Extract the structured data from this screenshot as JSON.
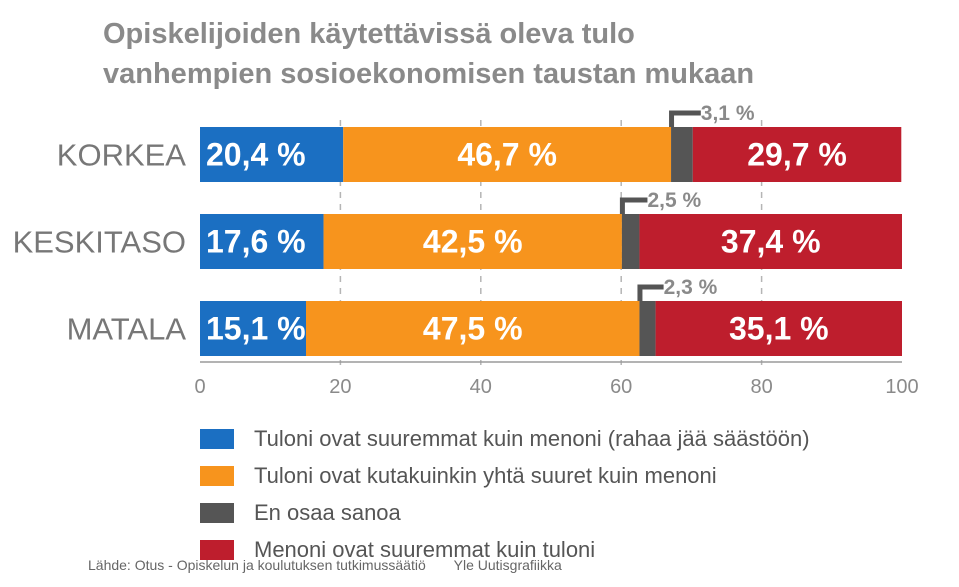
{
  "title": {
    "line1": "Opiskelijoiden käytettävissä oleva tulo",
    "line2": "vanhempien sosioekonomisen taustan mukaan"
  },
  "colors": {
    "blue": "#1b6fc2",
    "orange": "#f7941d",
    "gray": "#555555",
    "red": "#be1e2d",
    "axis_text": "#8a8a8a",
    "category_text": "#777777"
  },
  "chart_data": {
    "type": "bar",
    "orientation": "horizontal",
    "stacked": true,
    "categories": [
      "KORKEA",
      "KESKITASO",
      "MATALA"
    ],
    "series": [
      {
        "name": "Tuloni ovat suuremmat kuin menoni (rahaa jää säästöön)",
        "color": "#1b6fc2",
        "values": [
          20.4,
          17.6,
          15.1
        ],
        "labels": [
          "20,4 %",
          "17,6 %",
          "15,1 %"
        ]
      },
      {
        "name": "Tuloni ovat kutakuinkin yhtä suuret kuin menoni",
        "color": "#f7941d",
        "values": [
          46.7,
          42.5,
          47.5
        ],
        "labels": [
          "46,7 %",
          "42,5 %",
          "47,5 %"
        ]
      },
      {
        "name": "En osaa sanoa",
        "color": "#555555",
        "values": [
          3.1,
          2.5,
          2.3
        ],
        "labels": [
          "3,1 %",
          "2,5 %",
          "2,3 %"
        ]
      },
      {
        "name": "Menoni ovat suuremmat kuin tuloni",
        "color": "#be1e2d",
        "values": [
          29.7,
          37.4,
          35.1
        ],
        "labels": [
          "29,7 %",
          "37,4 %",
          "35,1 %"
        ]
      }
    ],
    "xlim": [
      0,
      100
    ],
    "xticks": [
      "0",
      "20",
      "40",
      "60",
      "80",
      "100"
    ],
    "grid": "dashed vertical",
    "legend": "bottom"
  },
  "legend_items": [
    {
      "label": "Tuloni ovat suuremmat kuin menoni (rahaa jää säästöön)",
      "color": "#1b6fc2"
    },
    {
      "label": "Tuloni ovat kutakuinkin yhtä suuret kuin menoni",
      "color": "#f7941d"
    },
    {
      "label": "En osaa sanoa",
      "color": "#555555"
    },
    {
      "label": "Menoni ovat suuremmat kuin tuloni",
      "color": "#be1e2d"
    }
  ],
  "footer": {
    "source": "Lähde: Otus - Opiskelun ja koulutuksen tutkimussäätiö",
    "credit": "Yle Uutisgrafiikka"
  }
}
